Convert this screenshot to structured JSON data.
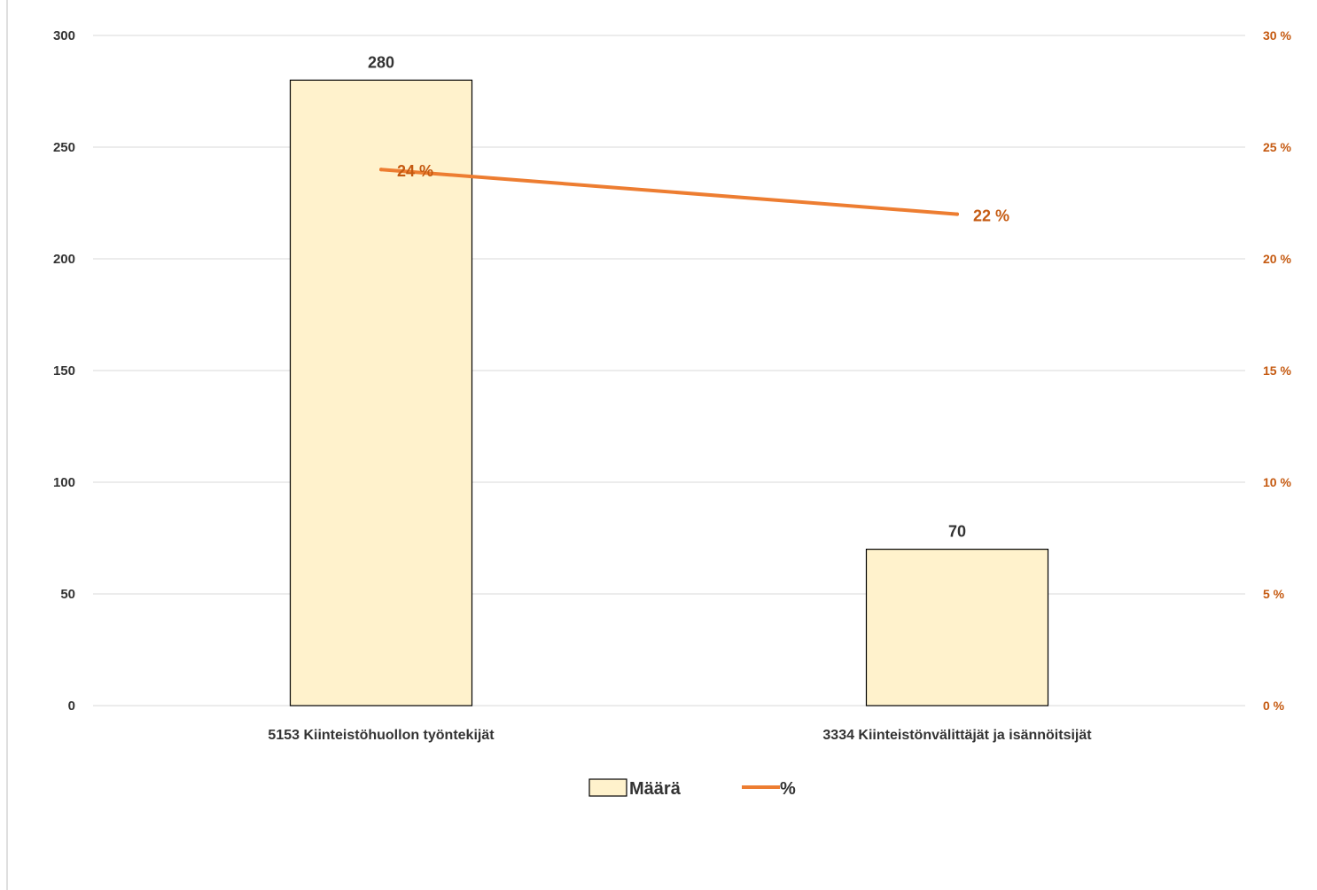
{
  "chart_data": {
    "type": "bar",
    "categories": [
      "5153 Kiinteistöhuollon työntekijät",
      "3334 Kiinteistönvälittäjät ja isännöitsijät"
    ],
    "series": [
      {
        "name": "Määrä",
        "type": "bar",
        "axis": "left",
        "values": [
          280,
          70
        ],
        "labels": [
          "280",
          "70"
        ]
      },
      {
        "name": "%",
        "type": "line",
        "axis": "right",
        "values": [
          24,
          22
        ],
        "labels": [
          "24 %",
          "22 %"
        ]
      }
    ],
    "y_left": {
      "ylim": [
        0,
        300
      ],
      "ticks": [
        0,
        50,
        100,
        150,
        200,
        250,
        300
      ],
      "tick_labels": [
        "0",
        "50",
        "100",
        "150",
        "200",
        "250",
        "300"
      ]
    },
    "y_right": {
      "ylim": [
        0,
        30
      ],
      "ticks": [
        0,
        5,
        10,
        15,
        20,
        25,
        30
      ],
      "tick_labels": [
        "0 %",
        "5 %",
        "10 %",
        "15 %",
        "20 %",
        "25 %",
        "30 %"
      ]
    },
    "grid": true,
    "legend": "bottom-center",
    "colors": {
      "bar_fill": "#FFF2CC",
      "bar_stroke": "#000000",
      "line": "#ED7D31",
      "right_axis_text": "#C55A11",
      "grid": "#D9D9D9"
    }
  }
}
